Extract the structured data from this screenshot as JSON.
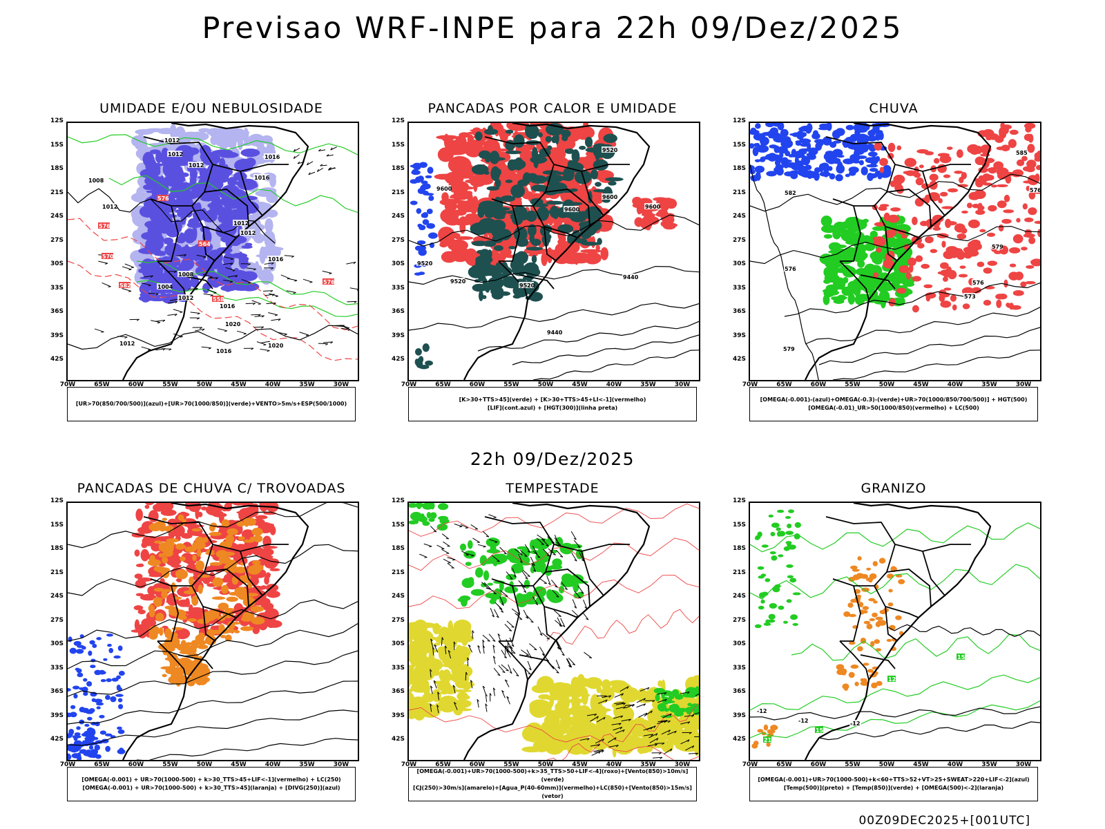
{
  "title": "Previsao WRF-INPE  para 22h 09/Dez/2025",
  "mid_title": "22h 09/Dez/2025",
  "footer": "00Z09DEC2025+[001UTC]",
  "lat_labels": [
    "12S",
    "15S",
    "18S",
    "21S",
    "24S",
    "27S",
    "30S",
    "33S",
    "36S",
    "39S",
    "42S"
  ],
  "lon_labels": [
    "70W",
    "65W",
    "60W",
    "55W",
    "50W",
    "45W",
    "40W",
    "35W",
    "30W"
  ],
  "panels": [
    {
      "id": "umidade",
      "title": "UMIDADE E/OU NEBULOSIDADE",
      "legend": [
        "[UR>70(850/700/500)](azul)+[UR>70(1000/850)](verde)+VENTO>5m/s+ESP(500/1000)"
      ],
      "contour_labels": [
        "1012",
        "1012",
        "1012",
        "1016",
        "1016",
        "1008",
        "1012",
        "1012",
        "1012",
        "1016",
        "1008",
        "1004",
        "1012",
        "1016",
        "1020",
        "1012",
        "1020",
        "1016",
        "576",
        "570",
        "576",
        "564",
        "558",
        "582",
        "576"
      ]
    },
    {
      "id": "pancadas-calor",
      "title": "PANCADAS POR CALOR E UMIDADE",
      "legend": [
        "[K>30+TTS>45](verde) + [K>30+TTS>45+LI<-1](vermelho)",
        "[LIF](cont.azul) + [HGT(300)](linha preta)"
      ],
      "contour_labels": [
        "9600",
        "9520",
        "9600",
        "9600",
        "9600",
        "9520",
        "9520",
        "9520",
        "9440",
        "9440"
      ]
    },
    {
      "id": "chuva",
      "title": "CHUVA",
      "legend": [
        "[OMEGA(-0.001)-(azul)+OMEGA(-0.3)-(verde)+UR>70(1000/850/700/500)] + HGT(500)",
        "[OMEGA(-0.01)_UR>50(1000/850)(vermelho) + LC(500)"
      ],
      "contour_labels": [
        "585",
        "582",
        "579",
        "576",
        "576",
        "573",
        "579",
        "576"
      ]
    },
    {
      "id": "pancadas-trovoadas",
      "title": "PANCADAS DE CHUVA C/ TROVOADAS",
      "legend": [
        "[OMEGA(-0.001) + UR>70(1000-500) + k>30_TTS>45+LIF<-1](vermelho) + LC(250)",
        "[OMEGA(-0.001) + UR>70(1000-500) + k>30_TTS>45](laranja) + [DIVG(250)](azul)"
      ],
      "contour_labels": []
    },
    {
      "id": "tempestade",
      "title": "TEMPESTADE",
      "legend": [
        "[OMEGA(-0.001)+UR>70(1000-500)+k>35_TTS>50+LIF<-4](roxo)+[Vento(850)>10m/s](verde)",
        "[CJ(250)>30m/s](amarelo)+[Agua_P(40-60mm)](vermelho)+LC(850)+[Vento(850)>15m/s](vetor)"
      ],
      "contour_labels": []
    },
    {
      "id": "granizo",
      "title": "GRANIZO",
      "legend": [
        "[OMEGA(-0.001)+UR>70(1000-500)+k<60+TTS>52+VT>25+SWEAT>220+LIF<-2](azul)",
        "[Temp(500)](preto) + [Temp(850)](verde) + [OMEGA(500)<-2](laranja)"
      ],
      "contour_labels": [
        "-12",
        "-12",
        "-12",
        "12",
        "15",
        "21",
        "15"
      ]
    }
  ],
  "colors": {
    "blue_dark": "#5a50e0",
    "blue_light": "#b4b4f0",
    "green": "#22cc22",
    "red": "#ee4444",
    "teal": "#1e5050",
    "orange": "#ee8822",
    "yellow": "#e0d830",
    "blue": "#2244ee"
  }
}
